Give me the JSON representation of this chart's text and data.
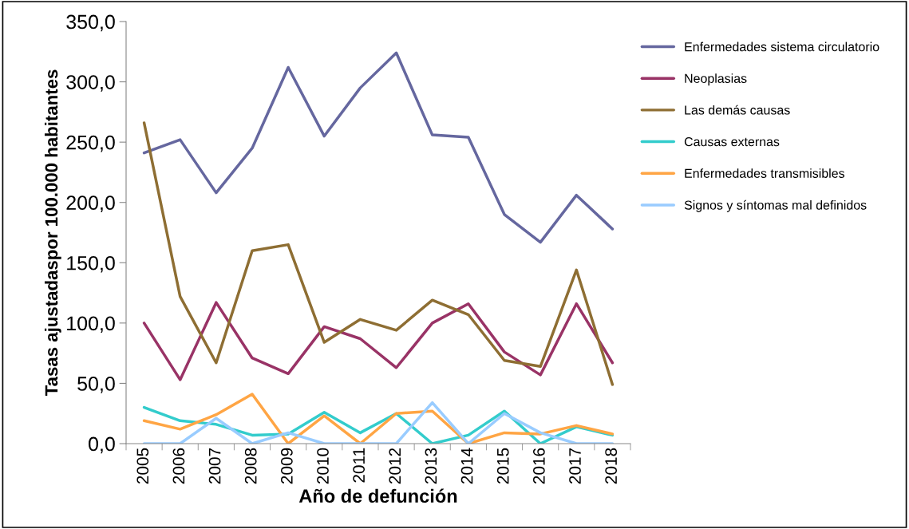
{
  "chart_data": {
    "type": "line",
    "xlabel": "Año de defunción",
    "ylabel": "Tasas ajustadaspor 100.000 habitantes",
    "categories": [
      "2005",
      "2006",
      "2007",
      "2008",
      "2009",
      "2010",
      "2011",
      "2012",
      "2013",
      "2014",
      "2015",
      "2016",
      "2017",
      "2018"
    ],
    "series": [
      {
        "name": "Enfermedades sistema circulatorio",
        "color": "#65679f",
        "values": [
          241,
          252,
          208,
          245,
          312,
          255,
          295,
          324,
          256,
          254,
          190,
          167,
          206,
          178
        ]
      },
      {
        "name": "Neoplasias",
        "color": "#993366",
        "values": [
          100,
          53,
          117,
          71,
          58,
          97,
          87,
          63,
          100,
          116,
          76,
          57,
          116,
          67
        ]
      },
      {
        "name": "Las demás causas",
        "color": "#8e6e33",
        "values": [
          266,
          122,
          67,
          160,
          165,
          84,
          103,
          94,
          119,
          107,
          69,
          64,
          144,
          49
        ]
      },
      {
        "name": "Causas externas",
        "color": "#33cccc",
        "values": [
          30,
          19,
          16,
          7,
          8,
          26,
          9,
          25,
          0,
          7,
          27,
          0,
          14,
          7
        ]
      },
      {
        "name": "Enfermedades transmisibles",
        "color": "#ffa544",
        "values": [
          19,
          12,
          24,
          41,
          0,
          23,
          0,
          25,
          27,
          0,
          9,
          8,
          15,
          8
        ]
      },
      {
        "name": "Signos y síntomas mal definidos",
        "color": "#99ccff",
        "values": [
          0,
          0,
          21,
          0,
          9,
          0,
          0,
          0,
          34,
          0,
          25,
          9,
          0,
          0
        ]
      }
    ],
    "ylim": [
      0,
      350
    ],
    "yticks": [
      {
        "value": 0,
        "label": "0,0"
      },
      {
        "value": 50,
        "label": "50,0"
      },
      {
        "value": 100,
        "label": "100,0"
      },
      {
        "value": 150,
        "label": "150,0"
      },
      {
        "value": 200,
        "label": "200,0"
      },
      {
        "value": 250,
        "label": "250,0"
      },
      {
        "value": 300,
        "label": "300,0"
      },
      {
        "value": 350,
        "label": "350,0"
      }
    ],
    "grid": false,
    "legend": "right",
    "marker": "none",
    "line_style": "solid"
  }
}
